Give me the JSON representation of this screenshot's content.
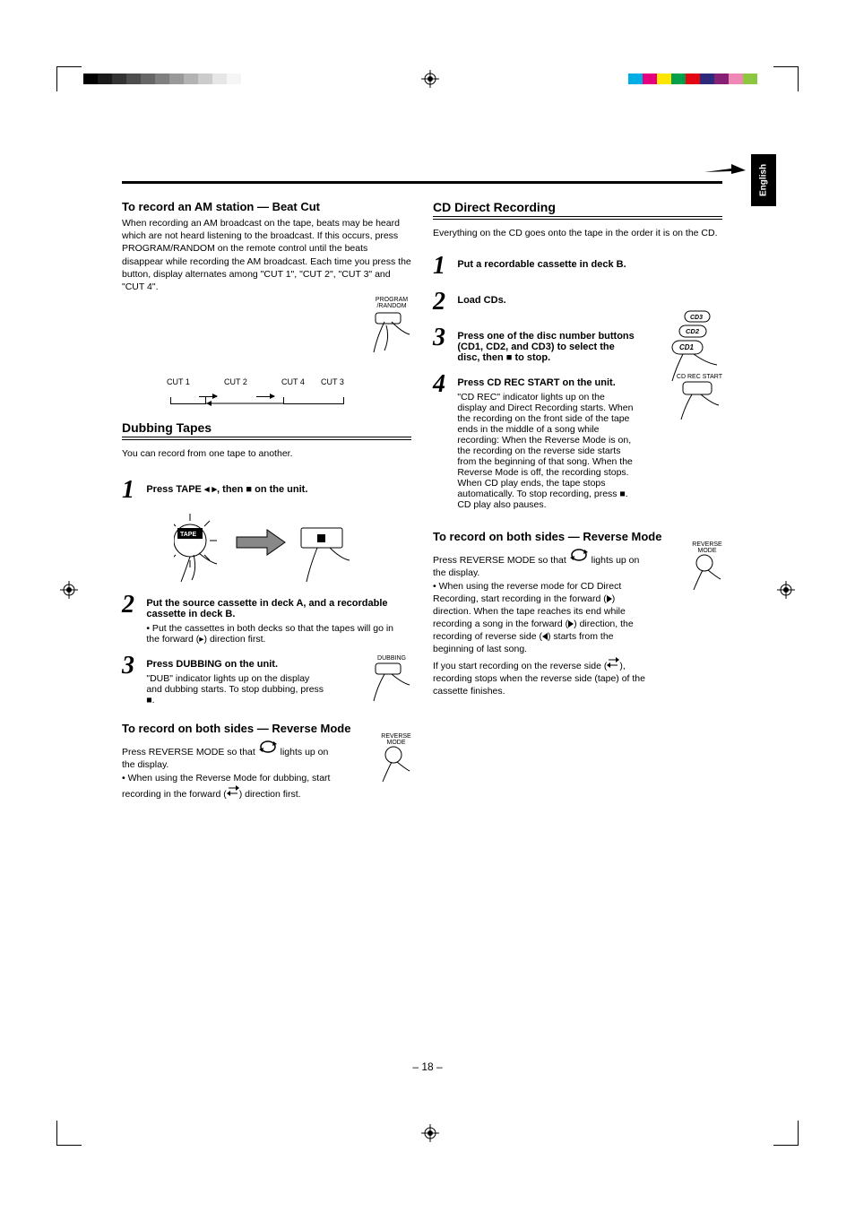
{
  "lang_tab": "English",
  "page_number": "– 18 –",
  "graybar_colors": [
    "#000000",
    "#1a1a1a",
    "#333333",
    "#4d4d4d",
    "#666666",
    "#808080",
    "#999999",
    "#b3b3b3",
    "#cccccc",
    "#e6e6e6",
    "#f5f5f5",
    "#ffffff"
  ],
  "colorbar_colors": [
    "#00aee6",
    "#e6007e",
    "#ffe600",
    "#00a04a",
    "#e30613",
    "#2d2a7b",
    "#862175",
    "#f088b6",
    "#8dc63f",
    "#fff"
  ],
  "left": {
    "beat_cut_title": "To record an AM station — Beat Cut",
    "beat_cut_p": "When recording an AM broadcast on the tape, beats may be heard which are not heard listening to the broadcast. If this occurs, press PROGRAM/RANDOM on the remote control until the beats disappear while recording the AM broadcast. Each time you press the button, display alternates among \"CUT 1\", \"CUT 2\", \"CUT 3\" and \"CUT 4\".",
    "program_random_label": "PROGRAM\n/RANDOM",
    "beat_labels": [
      "CUT 1",
      "CUT 2",
      "CUT 4",
      "CUT 3"
    ],
    "dubbing_title": "Dubbing Tapes",
    "dubbing_p": "You can record from one tape to another.",
    "step1_bold": "Press TAPE ◂ ▸, then ■ on the unit.",
    "tape_label": "TAPE",
    "step2_bold": "Put the source cassette in deck A, and a recordable cassette in deck B.",
    "step2_light": "• Put the cassettes in both decks so that the tapes will go in the forward (▸) direction first.",
    "step3_bold": "Press DUBBING on the unit.",
    "step3_light": "\"DUB\" indicator lights up on the display and dubbing starts.\nTo stop dubbing,  press ■.",
    "dubbing_label": "DUBBING",
    "rev_title_l": "To record on both sides — Reverse Mode",
    "rev_p_l": "Press REVERSE MODE so that       lights up on the display.\n• When using the Reverse Mode for dubbing, start recording in the forward (      ) direction first.",
    "rev_label": "REVERSE\nMODE"
  },
  "right": {
    "cd_title": "CD Direct Recording",
    "cd_p": "Everything on the CD goes onto the tape in the order it is on the CD.",
    "step1": "Put a recordable cassette in deck B.",
    "step2": "Load CDs.",
    "step3_bold": "Press one of the disc number buttons (CD1, CD2, and CD3) to select the disc, then ■ to stop.",
    "cd_btn_labels": [
      "CD3",
      "CD2",
      "CD1"
    ],
    "step4_bold": "Press CD REC START on the unit.",
    "step4_light": "\"CD REC\" indicator lights up on the display and Direct Recording starts.\nWhen the recording on the front side of the tape ends in the middle of a song while recording:\nWhen the Reverse Mode is on, the recording on the reverse side starts from the beginning of that song.\nWhen the Reverse Mode is off, the recording stops.\nWhen CD play ends, the tape stops automatically.\nTo stop recording,  press ■.\nCD play also pauses.",
    "cd_rec_label": "CD REC START",
    "rev_title_r": "To record on both sides — Reverse Mode",
    "rev_p_r1": "Press REVERSE MODE so that",
    "rev_p_r2": "lights up on the display.",
    "rev_p_r3": "• When using the reverse mode for CD Direct Recording, start recording in the forward (▸) direction. When the tape reaches its end while recording a song in the forward (▸) direction, the recording of reverse side (◂) starts from the beginning of last song.",
    "rev_p_r4": "If you start recording on the reverse side (      ), recording stops when the reverse side (tape) of the cassette finishes.",
    "rev_label": "REVERSE\nMODE"
  }
}
